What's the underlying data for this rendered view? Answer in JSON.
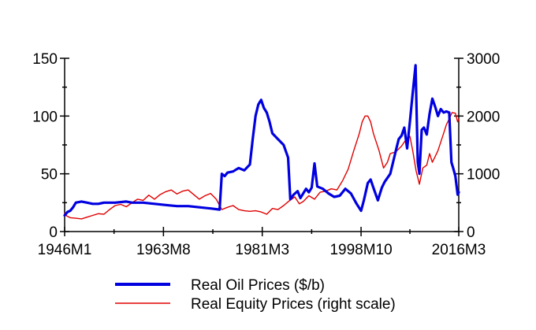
{
  "chart_data": {
    "type": "line",
    "title": "",
    "xlabel": "",
    "ylabel_left": "",
    "ylabel_right": "",
    "x_tick_labels": [
      "1946M1",
      "1963M8",
      "1981M3",
      "1998M10",
      "2016M3"
    ],
    "x_tick_years": [
      1946.0,
      1963.6,
      1981.2,
      1998.8,
      2016.2
    ],
    "xlim": [
      1946.0,
      2016.2
    ],
    "ylim_left": [
      0,
      150
    ],
    "yticks_left": [
      0,
      50,
      100,
      150
    ],
    "ylim_right": [
      0,
      3000
    ],
    "yticks_right": [
      0,
      1000,
      2000,
      3000
    ],
    "series": [
      {
        "name": "Real Oil Prices ($/b)",
        "axis": "left",
        "color": "#0000e0",
        "points": [
          [
            1946.0,
            14
          ],
          [
            1946.5,
            17
          ],
          [
            1947.0,
            18
          ],
          [
            1947.5,
            21
          ],
          [
            1948.0,
            25
          ],
          [
            1949.0,
            26
          ],
          [
            1950.0,
            25
          ],
          [
            1951.0,
            24
          ],
          [
            1952.0,
            24
          ],
          [
            1953.0,
            25
          ],
          [
            1955.0,
            25
          ],
          [
            1957.0,
            26
          ],
          [
            1958.0,
            25
          ],
          [
            1960.0,
            25
          ],
          [
            1962.0,
            24
          ],
          [
            1964.0,
            23
          ],
          [
            1966.0,
            22
          ],
          [
            1968.0,
            22
          ],
          [
            1970.0,
            21
          ],
          [
            1972.0,
            20
          ],
          [
            1973.6,
            19
          ],
          [
            1974.0,
            50
          ],
          [
            1974.5,
            48
          ],
          [
            1975.0,
            51
          ],
          [
            1976.0,
            52
          ],
          [
            1977.0,
            55
          ],
          [
            1978.0,
            53
          ],
          [
            1979.0,
            58
          ],
          [
            1979.5,
            80
          ],
          [
            1980.0,
            100
          ],
          [
            1980.5,
            110
          ],
          [
            1981.0,
            114
          ],
          [
            1981.5,
            107
          ],
          [
            1982.0,
            103
          ],
          [
            1982.5,
            95
          ],
          [
            1983.0,
            85
          ],
          [
            1984.0,
            80
          ],
          [
            1985.0,
            75
          ],
          [
            1985.8,
            64
          ],
          [
            1986.2,
            28
          ],
          [
            1986.8,
            32
          ],
          [
            1987.5,
            35
          ],
          [
            1988.0,
            29
          ],
          [
            1988.5,
            33
          ],
          [
            1989.0,
            37
          ],
          [
            1989.5,
            34
          ],
          [
            1990.0,
            38
          ],
          [
            1990.5,
            59
          ],
          [
            1991.0,
            39
          ],
          [
            1992.0,
            37
          ],
          [
            1993.0,
            33
          ],
          [
            1994.0,
            30
          ],
          [
            1995.0,
            31
          ],
          [
            1996.0,
            37
          ],
          [
            1997.0,
            33
          ],
          [
            1998.0,
            24
          ],
          [
            1998.8,
            18
          ],
          [
            1999.3,
            27
          ],
          [
            2000.0,
            42
          ],
          [
            2000.5,
            45
          ],
          [
            2001.0,
            38
          ],
          [
            2001.8,
            27
          ],
          [
            2002.5,
            38
          ],
          [
            2003.0,
            43
          ],
          [
            2004.0,
            50
          ],
          [
            2005.0,
            70
          ],
          [
            2005.5,
            80
          ],
          [
            2006.0,
            83
          ],
          [
            2006.5,
            90
          ],
          [
            2007.0,
            72
          ],
          [
            2007.5,
            95
          ],
          [
            2008.0,
            120
          ],
          [
            2008.5,
            144
          ],
          [
            2008.9,
            60
          ],
          [
            2009.2,
            50
          ],
          [
            2009.6,
            88
          ],
          [
            2010.0,
            90
          ],
          [
            2010.5,
            84
          ],
          [
            2011.0,
            102
          ],
          [
            2011.5,
            115
          ],
          [
            2012.0,
            108
          ],
          [
            2012.5,
            100
          ],
          [
            2013.0,
            106
          ],
          [
            2013.5,
            103
          ],
          [
            2014.0,
            104
          ],
          [
            2014.5,
            103
          ],
          [
            2014.9,
            60
          ],
          [
            2015.2,
            55
          ],
          [
            2015.6,
            48
          ],
          [
            2016.0,
            32
          ],
          [
            2016.2,
            34
          ]
        ]
      },
      {
        "name": "Real Equity Prices (right scale)",
        "axis": "right",
        "color": "#e00000",
        "points": [
          [
            1946.0,
            320
          ],
          [
            1946.4,
            270
          ],
          [
            1947.0,
            240
          ],
          [
            1948.0,
            230
          ],
          [
            1949.0,
            220
          ],
          [
            1950.0,
            250
          ],
          [
            1951.0,
            280
          ],
          [
            1952.0,
            310
          ],
          [
            1953.0,
            300
          ],
          [
            1954.0,
            380
          ],
          [
            1955.0,
            450
          ],
          [
            1956.0,
            470
          ],
          [
            1957.0,
            430
          ],
          [
            1958.0,
            500
          ],
          [
            1959.0,
            560
          ],
          [
            1960.0,
            540
          ],
          [
            1961.0,
            630
          ],
          [
            1962.0,
            560
          ],
          [
            1963.0,
            640
          ],
          [
            1964.0,
            690
          ],
          [
            1965.0,
            720
          ],
          [
            1966.0,
            650
          ],
          [
            1967.0,
            700
          ],
          [
            1968.0,
            720
          ],
          [
            1969.0,
            640
          ],
          [
            1970.0,
            560
          ],
          [
            1971.0,
            620
          ],
          [
            1972.0,
            660
          ],
          [
            1973.0,
            560
          ],
          [
            1974.0,
            380
          ],
          [
            1975.0,
            420
          ],
          [
            1976.0,
            450
          ],
          [
            1977.0,
            380
          ],
          [
            1978.0,
            360
          ],
          [
            1979.0,
            350
          ],
          [
            1980.0,
            360
          ],
          [
            1981.0,
            340
          ],
          [
            1982.0,
            300
          ],
          [
            1983.0,
            400
          ],
          [
            1984.0,
            380
          ],
          [
            1985.0,
            450
          ],
          [
            1986.0,
            530
          ],
          [
            1987.0,
            600
          ],
          [
            1987.8,
            480
          ],
          [
            1988.5,
            520
          ],
          [
            1989.5,
            620
          ],
          [
            1990.5,
            560
          ],
          [
            1991.5,
            680
          ],
          [
            1992.5,
            700
          ],
          [
            1993.5,
            740
          ],
          [
            1994.5,
            720
          ],
          [
            1995.5,
            880
          ],
          [
            1996.5,
            1080
          ],
          [
            1997.5,
            1400
          ],
          [
            1998.5,
            1700
          ],
          [
            1999.0,
            1900
          ],
          [
            1999.5,
            2000
          ],
          [
            2000.0,
            2000
          ],
          [
            2000.5,
            1900
          ],
          [
            2001.0,
            1700
          ],
          [
            2001.5,
            1550
          ],
          [
            2002.0,
            1400
          ],
          [
            2002.8,
            1100
          ],
          [
            2003.5,
            1200
          ],
          [
            2004.0,
            1350
          ],
          [
            2005.0,
            1380
          ],
          [
            2006.0,
            1480
          ],
          [
            2007.0,
            1620
          ],
          [
            2007.5,
            1650
          ],
          [
            2008.0,
            1400
          ],
          [
            2008.6,
            1050
          ],
          [
            2009.2,
            820
          ],
          [
            2009.8,
            1100
          ],
          [
            2010.5,
            1150
          ],
          [
            2011.0,
            1350
          ],
          [
            2011.5,
            1200
          ],
          [
            2012.0,
            1300
          ],
          [
            2012.5,
            1400
          ],
          [
            2013.0,
            1550
          ],
          [
            2013.5,
            1700
          ],
          [
            2014.0,
            1850
          ],
          [
            2014.5,
            1950
          ],
          [
            2015.0,
            2060
          ],
          [
            2015.6,
            2050
          ],
          [
            2016.0,
            1900
          ],
          [
            2016.2,
            1950
          ]
        ]
      }
    ],
    "legend": [
      {
        "label": "Real Oil Prices ($/b)",
        "color": "#0000e0",
        "style": "thick"
      },
      {
        "label": "Real Equity Prices (right scale)",
        "color": "#e00000",
        "style": "thin"
      }
    ],
    "legend_position": "bottom-center"
  }
}
